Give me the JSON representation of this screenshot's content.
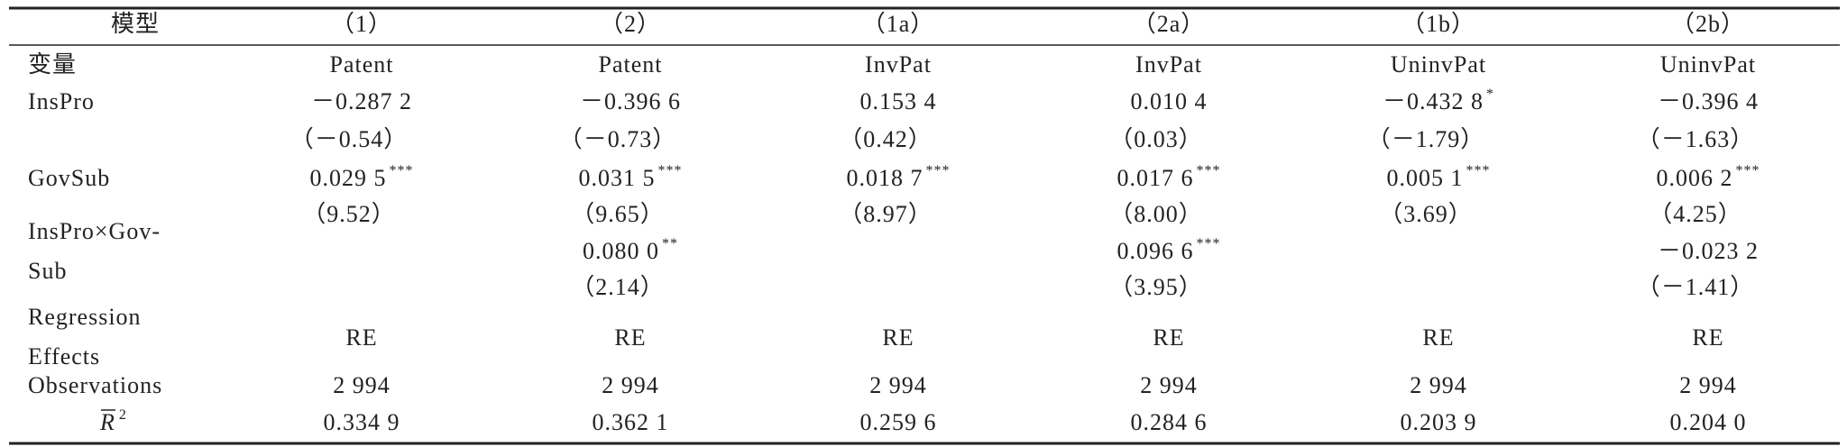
{
  "header": {
    "label": "模型",
    "columns": [
      "（1）",
      "（2）",
      "（1a）",
      "（2a）",
      "（1b）",
      "（2b）"
    ]
  },
  "rows": [
    {
      "label": [
        "变量"
      ],
      "cells": [
        "Patent",
        "Patent",
        "InvPat",
        "InvPat",
        "UninvPat",
        "UninvPat"
      ]
    },
    {
      "label": [
        "InsPro"
      ],
      "coef": [
        {
          "value": "－0.287 2"
        },
        {
          "value": "－0.396 6"
        },
        {
          "value": "0.153 4"
        },
        {
          "value": "0.010 4"
        },
        {
          "value": "－0.432 8",
          "stars": "*"
        },
        {
          "value": "－0.396 4"
        }
      ],
      "t": [
        "（－0.54）",
        "（－0.73）",
        "（0.42）",
        "（0.03）",
        "（－1.79）",
        "（－1.63）"
      ]
    },
    {
      "label": [
        "GovSub"
      ],
      "coef": [
        {
          "value": "0.029 5",
          "stars": "***"
        },
        {
          "value": "0.031 5",
          "stars": "***"
        },
        {
          "value": "0.018 7",
          "stars": "***"
        },
        {
          "value": "0.017 6",
          "stars": "***"
        },
        {
          "value": "0.005 1",
          "stars": "***"
        },
        {
          "value": "0.006 2",
          "stars": "***"
        }
      ],
      "t": [
        "（9.52）",
        "（9.65）",
        "（8.97）",
        "（8.00）",
        "（3.69）",
        "（4.25）"
      ]
    },
    {
      "label": [
        "InsPro×Gov-",
        "Sub"
      ],
      "coef": [
        null,
        {
          "value": "0.080 0",
          "stars": "**"
        },
        null,
        {
          "value": "0.096 6",
          "stars": "***"
        },
        null,
        {
          "value": "－0.023 2"
        }
      ],
      "t": [
        null,
        "（2.14）",
        null,
        "（3.95）",
        null,
        "（－1.41）"
      ]
    },
    {
      "label": [
        "Regression",
        "Effects"
      ],
      "cells": [
        "RE",
        "RE",
        "RE",
        "RE",
        "RE",
        "RE"
      ]
    },
    {
      "label": [
        "Observations"
      ],
      "cells": [
        "2 994",
        "2 994",
        "2 994",
        "2 994",
        "2 994",
        "2 994"
      ]
    },
    {
      "label": {
        "base": "R",
        "sup": "2"
      },
      "cells": [
        "0.334 9",
        "0.362 1",
        "0.259 6",
        "0.284 6",
        "0.203 9",
        "0.204 0"
      ]
    }
  ]
}
